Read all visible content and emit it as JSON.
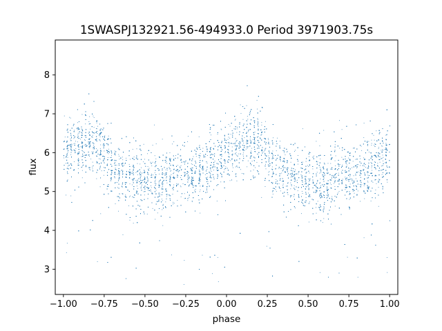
{
  "chart_data": {
    "type": "scatter",
    "title": "1SWASPJ132921.56-494933.0 Period 3971903.75s",
    "xlabel": "phase",
    "ylabel": "flux",
    "xlim": [
      -1.05,
      1.05
    ],
    "ylim": [
      2.35,
      8.9
    ],
    "xticks": [
      -1.0,
      -0.75,
      -0.5,
      -0.25,
      0.0,
      0.25,
      0.5,
      0.75,
      1.0
    ],
    "xtick_labels": [
      "−1.00",
      "−0.75",
      "−0.50",
      "−0.25",
      "0.00",
      "0.25",
      "0.50",
      "0.75",
      "1.00"
    ],
    "yticks": [
      3,
      4,
      5,
      6,
      7,
      8
    ],
    "ytick_labels": [
      "3",
      "4",
      "5",
      "6",
      "7",
      "8"
    ],
    "grid": false,
    "point_color": "#1f77b4",
    "series": [
      {
        "values_summary": "dense dotted light curve, phase-folded twice (phase -1 to 1)",
        "binned_median_flux": [
          {
            "x": -1.0,
            "y": 5.9
          },
          {
            "x": -0.9,
            "y": 6.2
          },
          {
            "x": -0.8,
            "y": 6.3
          },
          {
            "x": -0.7,
            "y": 5.6
          },
          {
            "x": -0.6,
            "y": 5.4
          },
          {
            "x": -0.5,
            "y": 5.3
          },
          {
            "x": -0.4,
            "y": 5.2
          },
          {
            "x": -0.3,
            "y": 5.5
          },
          {
            "x": -0.2,
            "y": 5.4
          },
          {
            "x": -0.1,
            "y": 5.7
          },
          {
            "x": 0.0,
            "y": 5.9
          },
          {
            "x": 0.1,
            "y": 6.2
          },
          {
            "x": 0.2,
            "y": 6.3
          },
          {
            "x": 0.3,
            "y": 5.6
          },
          {
            "x": 0.4,
            "y": 5.4
          },
          {
            "x": 0.5,
            "y": 5.3
          },
          {
            "x": 0.6,
            "y": 5.2
          },
          {
            "x": 0.7,
            "y": 5.5
          },
          {
            "x": 0.8,
            "y": 5.4
          },
          {
            "x": 0.9,
            "y": 5.7
          },
          {
            "x": 1.0,
            "y": 5.9
          }
        ]
      }
    ]
  }
}
